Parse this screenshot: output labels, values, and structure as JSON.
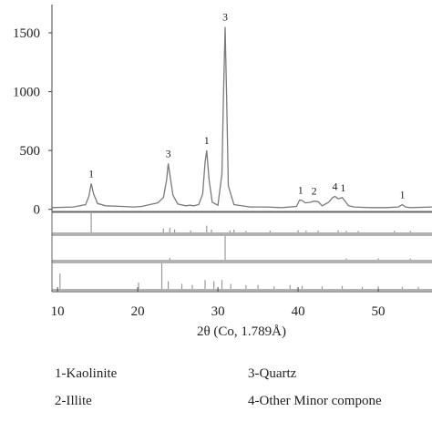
{
  "chart_data": {
    "type": "line",
    "xlabel": "2θ (Co, 1.789Å)",
    "x": [
      9.3,
      12,
      13.5,
      13.9,
      14.2,
      14.5,
      15,
      16,
      18,
      19.5,
      20.5,
      21.5,
      22.5,
      23.2,
      23.6,
      23.8,
      24,
      24.4,
      25,
      26,
      26.5,
      27,
      27.6,
      28.1,
      28.4,
      28.6,
      28.9,
      29.3,
      30,
      30.5,
      30.7,
      30.9,
      31.1,
      31.3,
      32,
      34,
      36,
      38,
      39.8,
      40.2,
      40.5,
      40.9,
      41.5,
      42,
      42.5,
      43,
      43.8,
      44.3,
      44.6,
      45,
      45.5,
      45.8,
      46.3,
      47,
      49,
      51,
      52.5,
      53,
      53.4,
      54,
      56.7
    ],
    "series": [
      {
        "color": "#7a7a7a",
        "values": [
          15,
          20,
          40,
          110,
          220,
          130,
          50,
          30,
          25,
          20,
          25,
          40,
          55,
          100,
          250,
          390,
          300,
          120,
          45,
          30,
          35,
          30,
          40,
          130,
          400,
          500,
          250,
          60,
          35,
          300,
          1000,
          1550,
          900,
          200,
          40,
          20,
          20,
          15,
          25,
          80,
          75,
          55,
          60,
          70,
          65,
          30,
          60,
          100,
          110,
          90,
          100,
          75,
          30,
          20,
          15,
          15,
          20,
          40,
          20,
          15,
          20
        ]
      }
    ],
    "xlim": [
      9.3,
      56.7
    ],
    "ylim": [
      -10,
      1740
    ],
    "xticks": [
      10,
      20,
      30,
      40,
      50
    ],
    "yticks": [
      0,
      500,
      1000,
      1500
    ],
    "peak_labels": [
      {
        "label": "1",
        "x": 14.2
      },
      {
        "label": "3",
        "x": 23.8
      },
      {
        "label": "1",
        "x": 28.6
      },
      {
        "label": "3",
        "x": 30.9
      },
      {
        "label": "1",
        "x": 40.3
      },
      {
        "label": "2",
        "x": 42
      },
      {
        "label": "4",
        "x": 44.6
      },
      {
        "label": "1",
        "x": 45.6
      },
      {
        "label": "1",
        "x": 53
      }
    ],
    "reference_patterns": [
      {
        "color": "#9a9a9a",
        "positions": [
          14.2,
          23.2,
          24,
          24.6,
          26.6,
          28.6,
          29.2,
          31.5,
          32,
          33.5,
          36.5,
          40,
          41,
          42.5,
          45,
          46,
          47.5,
          52,
          54
        ],
        "intensities": [
          100,
          20,
          25,
          15,
          10,
          35,
          15,
          10,
          15,
          8,
          10,
          12,
          10,
          10,
          12,
          8,
          8,
          8,
          8
        ]
      },
      {
        "color": "#9a9a9a",
        "positions": [
          24,
          30.9,
          46,
          50,
          54
        ],
        "intensities": [
          8,
          100,
          6,
          6,
          5
        ]
      },
      {
        "color": "#9a9a9a",
        "positions": [
          10.3,
          20.1,
          23,
          23.8,
          25.5,
          26.8,
          28.4,
          29.5,
          30.5,
          31.6,
          33.5,
          35,
          37,
          39,
          40.5,
          43,
          45.5,
          48,
          50,
          53,
          55
        ],
        "intensities": [
          60,
          25,
          100,
          30,
          20,
          15,
          35,
          30,
          35,
          20,
          15,
          15,
          10,
          15,
          12,
          10,
          12,
          8,
          10,
          8,
          8
        ]
      }
    ],
    "legend": [
      "1-Kaolinite",
      "3-Quartz",
      "2-Illite",
      "4-Other Minor compone"
    ]
  }
}
